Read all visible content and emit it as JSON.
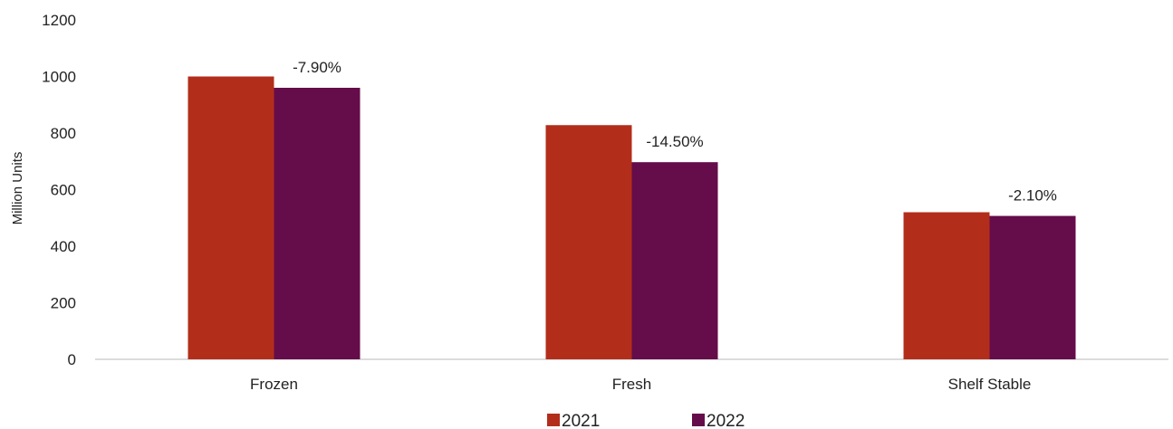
{
  "chart_data": {
    "type": "bar",
    "title": "",
    "xlabel": "",
    "ylabel": "Million Units",
    "ylim": [
      0,
      1200
    ],
    "yticks": [
      0,
      200,
      400,
      600,
      800,
      1000,
      1200
    ],
    "categories": [
      "Frozen",
      "Fresh",
      "Shelf Stable"
    ],
    "series": [
      {
        "name": "2021",
        "color": "#b22e1b",
        "values": [
          1000,
          828,
          520
        ]
      },
      {
        "name": "2022",
        "color": "#650c4a",
        "values": [
          960,
          697,
          507
        ]
      }
    ],
    "annotations": [
      "-7.90%",
      "-14.50%",
      "-2.10%"
    ],
    "grid": false,
    "legend_position": "bottom"
  }
}
